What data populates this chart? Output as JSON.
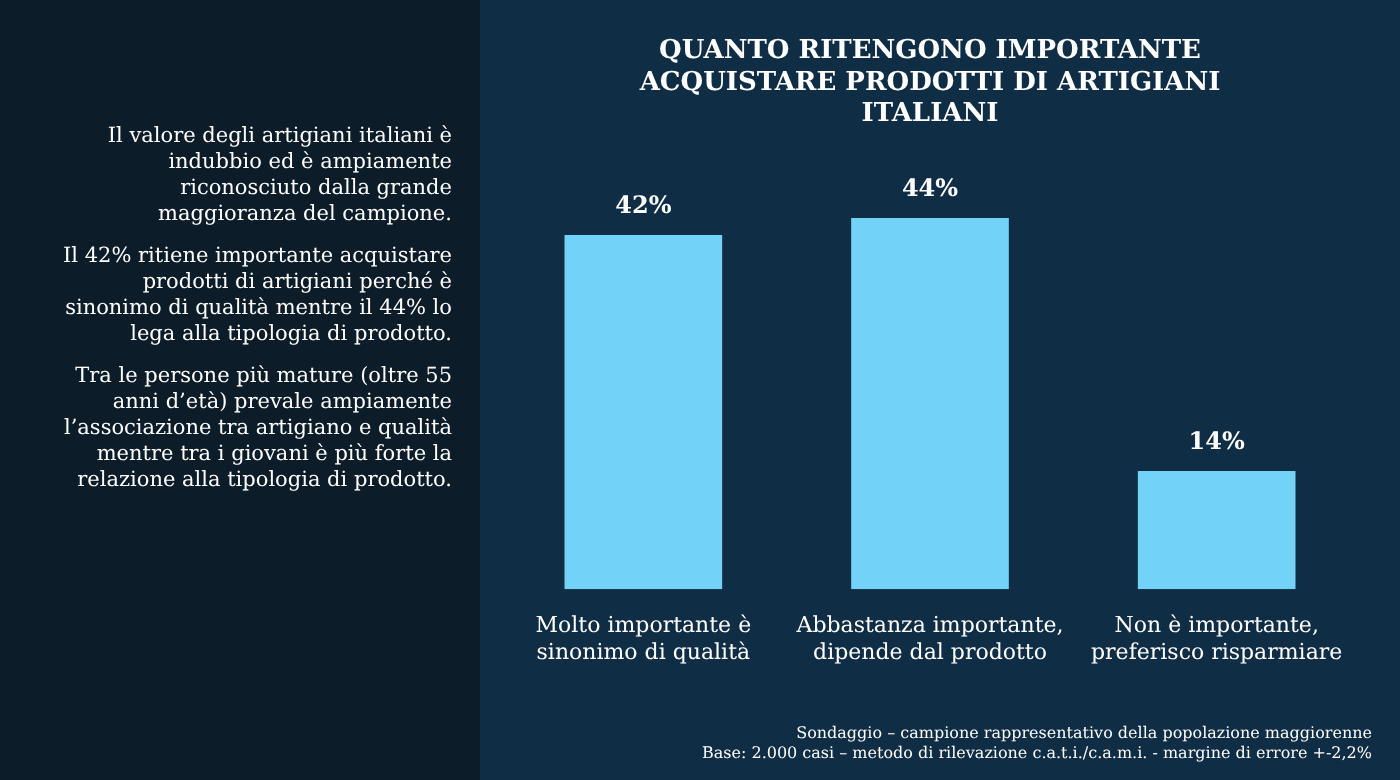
{
  "chart_data": {
    "type": "bar",
    "title": "QUANTO RITENGONO IMPORTANTE ACQUISTARE PRODOTTI DI ARTIGIANI ITALIANI",
    "categories": [
      "Molto importante è sinonimo di qualità",
      "Abbastanza importante, dipende dal prodotto",
      "Non è importante, preferisco risparmiare"
    ],
    "values": [
      42,
      44,
      14
    ],
    "color": "#72d2f7",
    "value_labels": [
      "42%",
      "44%",
      "14%"
    ],
    "tick_labels": "x",
    "grid": false,
    "legend": false,
    "annotations": [
      "Il valore degli artigiani italiani è indubbio ed è ampiamente riconosciuto dalla grande maggioranza del campione.",
      "Il 42% ritiene importante acquistare prodotti di artigiani perché è sinonimo di qualità mentre il 44% lo lega alla tipologia di prodotto.",
      "Tra le persone più mature (oltre 55 anni d’età) prevale ampiamente l’associazione tra artigiano e qualità mentre tra i giovani è più forte la relazione alla tipologia di prodotto.",
      "Sondaggio – campione rappresentativo della popolazione maggiorenne",
      "Base: 2.000 casi – metodo di rilevazione c.a.t.i./c.a.m.i. - margine di errore +-2,2%"
    ]
  }
}
